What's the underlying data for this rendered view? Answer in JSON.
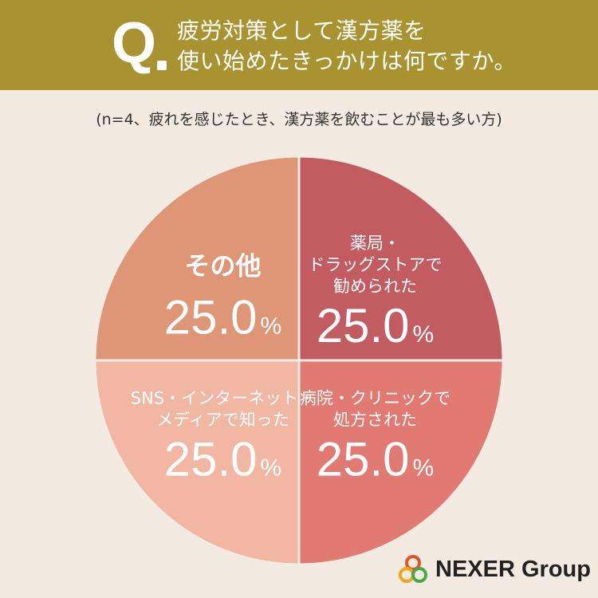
{
  "header": {
    "q_mark": "Q",
    "question_line1": "疲労対策として漢方薬を",
    "question_line2": "使い始めたきっかけは何ですか。"
  },
  "subtitle": "(n=4、疲れを感じたとき、漢方薬を飲むことが最も多い方)",
  "chart_data": {
    "type": "pie",
    "slices": [
      {
        "label_lines": [
          "薬局・",
          "ドラッグストアで",
          "勧められた"
        ],
        "value": 25.0,
        "value_text": "25.0",
        "unit": "%",
        "color": "#c25c60"
      },
      {
        "label_lines": [
          "病院・クリニックで",
          "処方された"
        ],
        "value": 25.0,
        "value_text": "25.0",
        "unit": "%",
        "color": "#e07a72"
      },
      {
        "label_lines": [
          "SNS・インターネット・",
          "メディアで知った"
        ],
        "value": 25.0,
        "value_text": "25.0",
        "unit": "%",
        "color": "#f1b7a2"
      },
      {
        "label_lines": [
          "その他"
        ],
        "value": 25.0,
        "value_text": "25.0",
        "unit": "%",
        "color": "#de9676"
      }
    ]
  },
  "logo": {
    "text": "NEXER Group",
    "colors": [
      "#e8502b",
      "#f2a51c",
      "#49a84a"
    ]
  }
}
